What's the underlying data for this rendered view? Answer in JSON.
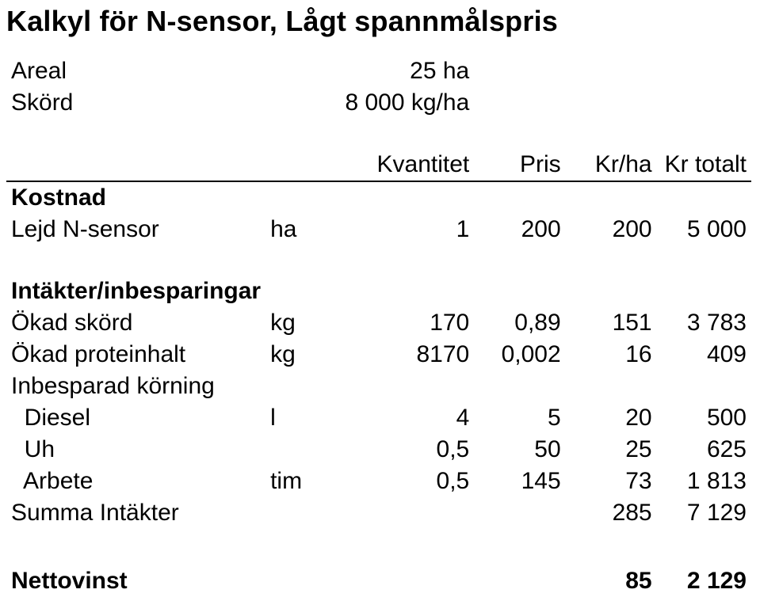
{
  "title": "Kalkyl för N-sensor, Lågt spannmålspris",
  "meta": {
    "areal_label": "Areal",
    "areal_value": "25 ha",
    "skord_label": "Skörd",
    "skord_value": "8 000 kg/ha"
  },
  "header": {
    "kvantitet": "Kvantitet",
    "pris": "Pris",
    "krha": "Kr/ha",
    "krtotalt": "Kr totalt"
  },
  "kostnad_label": "Kostnad",
  "lejn": {
    "label": "Lejd N-sensor",
    "unit": "ha",
    "qty": "1",
    "price": "200",
    "krha": "200",
    "tot": "5 000"
  },
  "intakter_label": "Intäkter/inbesparingar",
  "okad_skord": {
    "label": "Ökad skörd",
    "unit": "kg",
    "qty": "170",
    "price": "0,89",
    "krha": "151",
    "tot": "3 783"
  },
  "okad_protein": {
    "label": "Ökad proteinhalt",
    "unit": "kg",
    "qty": "8170",
    "price": "0,002",
    "krha": "16",
    "tot": "409"
  },
  "inbesparad_label": "Inbesparad körning",
  "diesel": {
    "label": "  Diesel",
    "unit": "l",
    "qty": "4",
    "price": "5",
    "krha": "20",
    "tot": "500"
  },
  "uh": {
    "label": "  Uh",
    "unit": "",
    "qty": "0,5",
    "price": "50",
    "krha": "25",
    "tot": "625"
  },
  "arbete": {
    "label": "  Arbete",
    "unit": "tim",
    "qty": "0,5",
    "price": "145",
    "krha": "73",
    "tot": "1 813"
  },
  "summa": {
    "label": "Summa Intäkter",
    "krha": "285",
    "tot": "7 129"
  },
  "netto": {
    "label": "Nettovinst",
    "krha": "85",
    "tot": "2 129"
  }
}
